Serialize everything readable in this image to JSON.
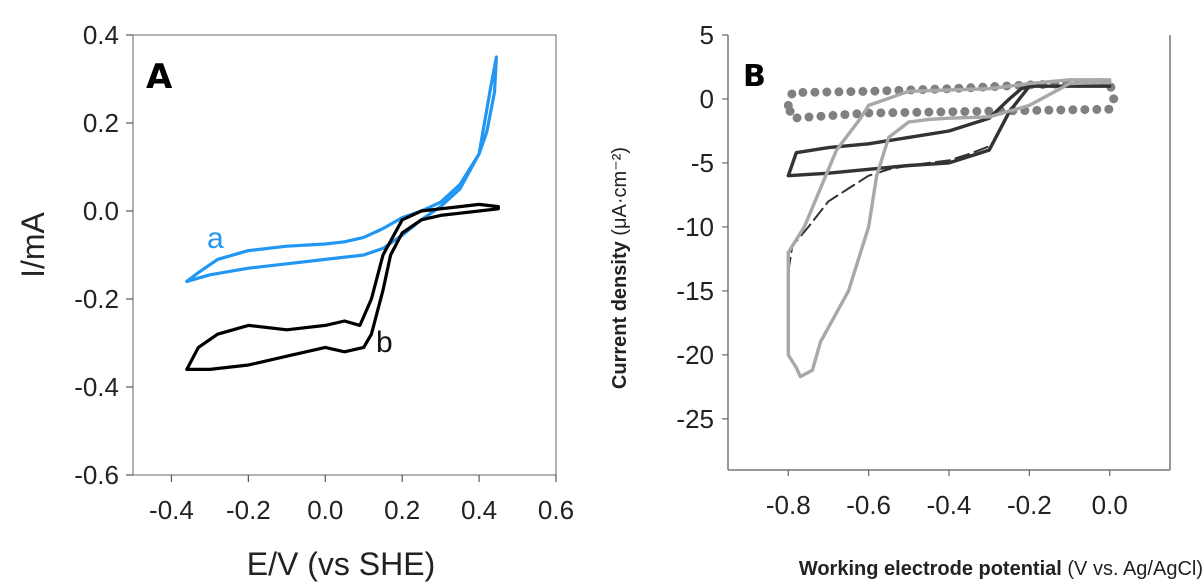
{
  "chart_data": [
    {
      "type": "line",
      "panel_label": "A",
      "xlabel": "E/V (vs SHE)",
      "ylabel": "I/mA",
      "xlim": [
        -0.5,
        0.6
      ],
      "ylim": [
        -0.6,
        0.4
      ],
      "xticks": [
        "-0.4",
        "-0.2",
        "0.0",
        "0.2",
        "0.4",
        "0.6"
      ],
      "yticks": [
        "0.4",
        "0.2",
        "0.0",
        "-0.2",
        "-0.4",
        "-0.6"
      ],
      "grid": false,
      "series": [
        {
          "name": "a",
          "color": "#2196f3",
          "x": [
            -0.36,
            -0.33,
            -0.28,
            -0.2,
            -0.1,
            0.0,
            0.05,
            0.1,
            0.15,
            0.2,
            0.25,
            0.3,
            0.35,
            0.4,
            0.42,
            0.44,
            0.445,
            0.43,
            0.4,
            0.35,
            0.3,
            0.25,
            0.2,
            0.15,
            0.1,
            0.0,
            -0.1,
            -0.2,
            -0.3,
            -0.36
          ],
          "y": [
            -0.16,
            -0.14,
            -0.11,
            -0.09,
            -0.08,
            -0.075,
            -0.07,
            -0.06,
            -0.04,
            -0.015,
            0.0,
            0.02,
            0.06,
            0.13,
            0.18,
            0.27,
            0.35,
            0.28,
            0.13,
            0.05,
            0.01,
            -0.02,
            -0.055,
            -0.085,
            -0.1,
            -0.11,
            -0.12,
            -0.13,
            -0.145,
            -0.16
          ]
        },
        {
          "name": "b",
          "color": "#000000",
          "x": [
            -0.36,
            -0.33,
            -0.28,
            -0.2,
            -0.1,
            0.0,
            0.05,
            0.09,
            0.12,
            0.15,
            0.2,
            0.25,
            0.3,
            0.35,
            0.4,
            0.45,
            0.45,
            0.4,
            0.35,
            0.3,
            0.25,
            0.2,
            0.17,
            0.15,
            0.12,
            0.1,
            0.05,
            0.0,
            -0.1,
            -0.2,
            -0.3,
            -0.36
          ],
          "y": [
            -0.36,
            -0.31,
            -0.28,
            -0.26,
            -0.27,
            -0.26,
            -0.25,
            -0.26,
            -0.2,
            -0.1,
            -0.02,
            0.0,
            0.005,
            0.01,
            0.015,
            0.01,
            0.005,
            0.0,
            -0.005,
            -0.01,
            -0.02,
            -0.05,
            -0.1,
            -0.18,
            -0.28,
            -0.31,
            -0.32,
            -0.31,
            -0.33,
            -0.35,
            -0.36,
            -0.36
          ]
        }
      ]
    },
    {
      "type": "line",
      "panel_label": "B",
      "xlabel": "Working electrode potential",
      "xlabel_units": "(V vs. Ag/AgCl)",
      "ylabel": "Current density",
      "ylabel_units": "(μA·cm⁻²)",
      "xlim": [
        -0.95,
        0.15
      ],
      "ylim": [
        -29,
        5
      ],
      "xticks": [
        "-0.8",
        "-0.6",
        "-0.4",
        "-0.2",
        "0.0"
      ],
      "yticks": [
        "5",
        "0",
        "-5",
        "-10",
        "-15",
        "-20",
        "-25"
      ],
      "grid": false,
      "series": [
        {
          "style": "dotted",
          "color": "#808080",
          "x": [
            -0.8,
            -0.79,
            -0.6,
            -0.4,
            -0.2,
            0.0,
            0.01,
            0.0,
            -0.2,
            -0.4,
            -0.6,
            -0.79,
            -0.8
          ],
          "y": [
            -0.5,
            0.5,
            0.6,
            0.8,
            1.1,
            1.3,
            0.0,
            -0.8,
            -0.9,
            -1.0,
            -1.1,
            -1.5,
            -0.5
          ]
        },
        {
          "style": "solid",
          "color": "#333333",
          "x": [
            -0.8,
            -0.78,
            -0.7,
            -0.6,
            -0.5,
            -0.4,
            -0.3,
            -0.25,
            -0.22,
            -0.2,
            -0.1,
            0.0,
            0.0,
            -0.1,
            -0.2,
            -0.25,
            -0.3,
            -0.4,
            -0.5,
            -0.6,
            -0.7,
            -0.8
          ],
          "y": [
            -6.0,
            -4.2,
            -3.8,
            -3.5,
            -3.0,
            -2.5,
            -1.5,
            0.0,
            0.8,
            1.0,
            1.0,
            1.0,
            1.0,
            1.0,
            1.0,
            -1.0,
            -4.0,
            -5.0,
            -5.2,
            -5.5,
            -5.8,
            -6.0
          ]
        },
        {
          "style": "dashed",
          "color": "#333333",
          "x": [
            -0.8,
            -0.79,
            -0.75,
            -0.7,
            -0.65,
            -0.6,
            -0.55,
            -0.5,
            -0.45,
            -0.4,
            -0.35,
            -0.3
          ],
          "y": [
            -13.5,
            -11.5,
            -10.0,
            -8.0,
            -7.0,
            -6.0,
            -5.5,
            -5.2,
            -5.0,
            -4.8,
            -4.3,
            -3.7
          ]
        },
        {
          "style": "solid",
          "color": "#a8a8a8",
          "x": [
            -0.8,
            -0.8,
            -0.78,
            -0.77,
            -0.74,
            -0.72,
            -0.65,
            -0.6,
            -0.58,
            -0.55,
            -0.5,
            -0.45,
            -0.4,
            -0.3,
            -0.2,
            -0.1,
            0.0,
            0.0,
            -0.1,
            -0.2,
            -0.3,
            -0.4,
            -0.5,
            -0.6,
            -0.62,
            -0.68,
            -0.72,
            -0.76,
            -0.8
          ],
          "y": [
            -12.0,
            -20.0,
            -21.0,
            -21.7,
            -21.2,
            -19.0,
            -15.0,
            -10.0,
            -6.0,
            -3.0,
            -1.8,
            -1.6,
            -1.5,
            -1.4,
            -0.5,
            1.2,
            1.3,
            1.5,
            1.5,
            1.2,
            0.8,
            0.7,
            0.6,
            -0.5,
            -1.5,
            -4.0,
            -7.0,
            -10.0,
            -12.0
          ]
        }
      ]
    }
  ]
}
